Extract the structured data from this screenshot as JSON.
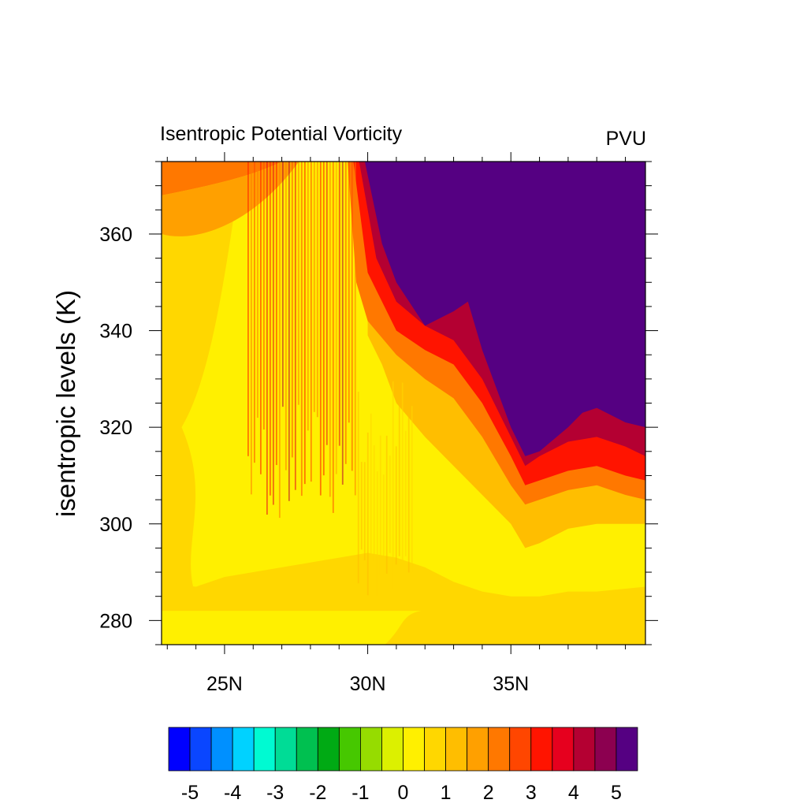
{
  "chart_data": {
    "type": "heatmap",
    "title_left": "Isentropic Potential Vorticity",
    "title_right": "PVU",
    "ylabel": "isentropic levels (K)",
    "xlabel": "",
    "xlim": [
      22.8,
      39.7
    ],
    "ylim": [
      275,
      375
    ],
    "x_major_ticks": [
      {
        "value": 25,
        "label": "25N"
      },
      {
        "value": 30,
        "label": "30N"
      },
      {
        "value": 35,
        "label": "35N"
      }
    ],
    "y_major_ticks": [
      {
        "value": 280,
        "label": "280"
      },
      {
        "value": 300,
        "label": "300"
      },
      {
        "value": 320,
        "label": "320"
      },
      {
        "value": 340,
        "label": "340"
      },
      {
        "value": 360,
        "label": "360"
      }
    ],
    "colorbar": {
      "levels": [
        -5,
        -4.5,
        -4,
        -3.5,
        -3,
        -2.5,
        -2,
        -1.5,
        -1,
        -0.5,
        0,
        0.5,
        1,
        1.5,
        2,
        2.5,
        3,
        3.5,
        4,
        4.5,
        5
      ],
      "colors": [
        "#0000ff",
        "#0a46ff",
        "#0090ff",
        "#00d2ff",
        "#00fad2",
        "#00dc96",
        "#00c050",
        "#00aa14",
        "#46c800",
        "#96dc00",
        "#dcf000",
        "#fff000",
        "#ffd700",
        "#ffbe00",
        "#ffa000",
        "#ff7800",
        "#ff4600",
        "#ff1400",
        "#e6001e",
        "#b40032",
        "#8c0050",
        "#550082"
      ],
      "labels": [
        {
          "value": -5,
          "label": "-5"
        },
        {
          "value": -4,
          "label": "-4"
        },
        {
          "value": -3,
          "label": "-3"
        },
        {
          "value": -2,
          "label": "-2"
        },
        {
          "value": -1,
          "label": "-1"
        },
        {
          "value": 0,
          "label": "0"
        },
        {
          "value": 1,
          "label": "1"
        },
        {
          "value": 2,
          "label": "2"
        },
        {
          "value": 3,
          "label": "3"
        },
        {
          "value": 4,
          "label": "4"
        },
        {
          "value": 5,
          "label": "5"
        }
      ]
    },
    "field_contours": [
      {
        "level": 0.5,
        "boundary": [
          [
            22.8,
            288
          ],
          [
            24,
            287
          ],
          [
            25,
            289
          ],
          [
            26,
            290
          ],
          [
            27,
            291
          ],
          [
            28,
            292
          ],
          [
            29,
            293
          ],
          [
            30,
            294
          ],
          [
            31,
            293
          ],
          [
            32,
            291
          ],
          [
            33,
            288
          ],
          [
            34,
            286
          ],
          [
            35,
            285
          ],
          [
            36,
            285
          ],
          [
            37,
            286
          ],
          [
            38,
            286
          ],
          [
            39.7,
            287
          ]
        ]
      },
      {
        "level": 1.0,
        "boundary": [
          [
            30,
            339
          ],
          [
            30.5,
            333
          ],
          [
            31,
            325
          ],
          [
            32,
            318
          ],
          [
            33,
            312
          ],
          [
            34,
            306
          ],
          [
            35,
            300
          ],
          [
            35.5,
            295
          ],
          [
            36,
            296
          ],
          [
            37,
            299
          ],
          [
            38,
            300
          ],
          [
            39,
            300
          ],
          [
            39.7,
            300
          ]
        ]
      },
      {
        "level": 2.0,
        "boundary": [
          [
            29.3,
            375
          ],
          [
            29.6,
            350
          ],
          [
            30,
            342
          ],
          [
            31,
            335
          ],
          [
            32,
            330
          ],
          [
            33,
            326
          ],
          [
            34,
            318
          ],
          [
            35,
            308
          ],
          [
            35.5,
            304
          ],
          [
            36,
            305
          ],
          [
            37,
            307
          ],
          [
            38,
            308
          ],
          [
            39,
            306
          ],
          [
            39.7,
            305
          ]
        ]
      },
      {
        "level": 3.0,
        "boundary": [
          [
            29.5,
            375
          ],
          [
            30,
            352
          ],
          [
            31,
            340
          ],
          [
            32,
            336
          ],
          [
            33,
            333
          ],
          [
            34,
            325
          ],
          [
            35,
            314
          ],
          [
            35.5,
            308
          ],
          [
            36,
            309
          ],
          [
            37,
            311
          ],
          [
            38,
            312
          ],
          [
            39,
            310
          ],
          [
            39.7,
            309
          ]
        ]
      },
      {
        "level": 4.0,
        "boundary": [
          [
            29.7,
            375
          ],
          [
            30.3,
            355
          ],
          [
            31,
            346
          ],
          [
            32,
            341
          ],
          [
            33,
            338
          ],
          [
            34,
            330
          ],
          [
            35,
            318
          ],
          [
            35.5,
            312
          ],
          [
            36,
            314
          ],
          [
            37,
            317
          ],
          [
            38,
            318
          ],
          [
            39,
            316
          ],
          [
            39.7,
            314
          ]
        ]
      },
      {
        "level": 5.0,
        "boundary": [
          [
            29.9,
            375
          ],
          [
            30.5,
            358
          ],
          [
            31,
            350
          ],
          [
            32,
            341
          ],
          [
            33,
            344
          ],
          [
            33.5,
            346
          ],
          [
            34,
            336
          ],
          [
            35,
            320
          ],
          [
            35.5,
            314
          ],
          [
            36,
            315
          ],
          [
            37,
            320
          ],
          [
            37.5,
            323
          ],
          [
            38,
            324
          ],
          [
            39,
            321
          ],
          [
            39.7,
            320
          ]
        ]
      }
    ],
    "grid": false,
    "colorbar_placement": "bottom"
  }
}
